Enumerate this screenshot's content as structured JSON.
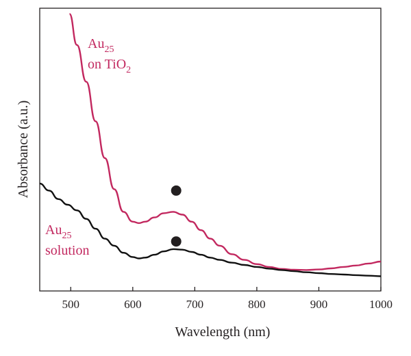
{
  "chart_data": {
    "type": "line",
    "xlabel": "Wavelength (nm)",
    "ylabel": "Absorbance (a.u.)",
    "xlim": [
      450,
      1000
    ],
    "ylim": [
      0,
      1
    ],
    "x_ticks": [
      500,
      600,
      700,
      800,
      900,
      1000
    ],
    "y_ticks": [],
    "grid": false,
    "series": [
      {
        "label_main": "Au",
        "label_sub": "25",
        "label_line2_main": "on TiO",
        "label_line2_sub": "2",
        "color": "#c2285f",
        "x": [
          498,
          510,
          525,
          540,
          555,
          570,
          585,
          600,
          610,
          620,
          635,
          650,
          665,
          680,
          695,
          710,
          725,
          740,
          760,
          780,
          800,
          820,
          840,
          860,
          880,
          900,
          920,
          940,
          960,
          980,
          1000
        ],
        "y": [
          0.98,
          0.87,
          0.74,
          0.6,
          0.47,
          0.36,
          0.28,
          0.245,
          0.24,
          0.245,
          0.26,
          0.275,
          0.28,
          0.27,
          0.245,
          0.215,
          0.185,
          0.16,
          0.13,
          0.11,
          0.095,
          0.085,
          0.078,
          0.075,
          0.074,
          0.076,
          0.08,
          0.085,
          0.09,
          0.097,
          0.104
        ]
      },
      {
        "label_main": "Au",
        "label_sub": "25",
        "label_line2_main": "solution",
        "label_line2_sub": "",
        "color": "#111111",
        "x": [
          450,
          465,
          480,
          495,
          510,
          525,
          540,
          555,
          570,
          585,
          600,
          610,
          620,
          635,
          650,
          665,
          680,
          695,
          710,
          725,
          740,
          760,
          780,
          800,
          820,
          840,
          860,
          880,
          900,
          920,
          940,
          960,
          980,
          1000
        ],
        "y": [
          0.38,
          0.355,
          0.325,
          0.305,
          0.285,
          0.255,
          0.22,
          0.185,
          0.16,
          0.135,
          0.12,
          0.115,
          0.118,
          0.128,
          0.14,
          0.148,
          0.146,
          0.138,
          0.128,
          0.118,
          0.11,
          0.1,
          0.092,
          0.085,
          0.079,
          0.074,
          0.07,
          0.066,
          0.063,
          0.06,
          0.058,
          0.056,
          0.054,
          0.052
        ]
      }
    ],
    "markers": [
      {
        "x": 670,
        "y": 0.355,
        "color": "#231f20"
      },
      {
        "x": 670,
        "y": 0.175,
        "color": "#231f20"
      }
    ]
  }
}
